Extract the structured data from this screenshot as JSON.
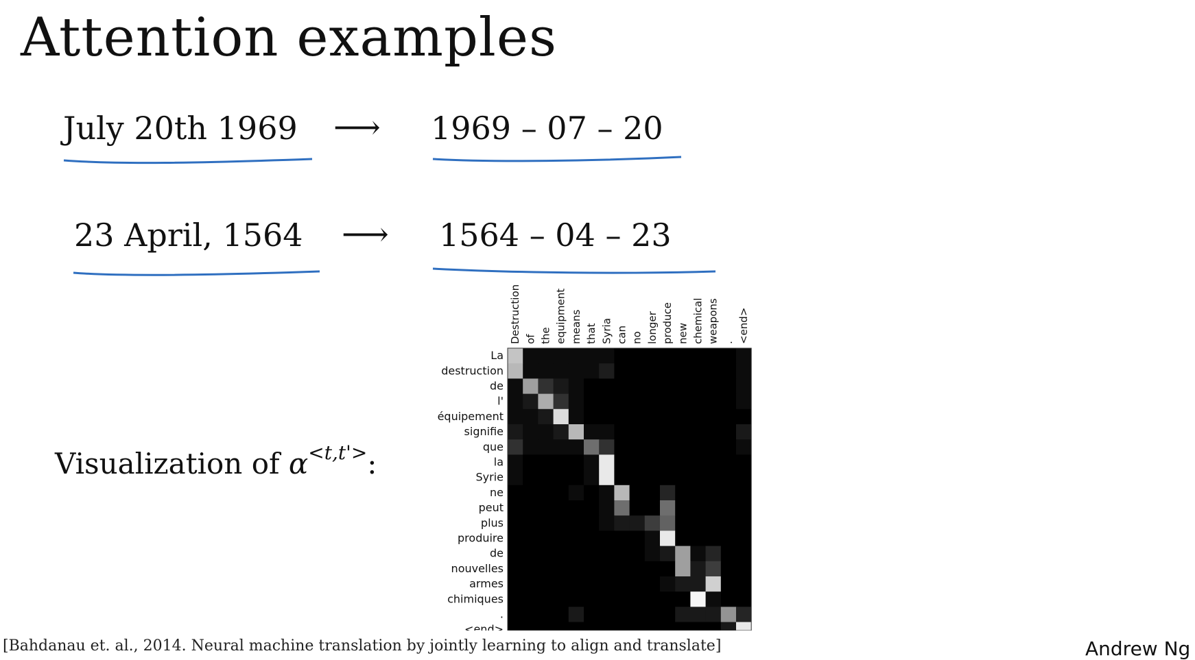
{
  "slide": {
    "title": "Attention examples",
    "examples": [
      {
        "input": "July 20th 1969",
        "arrow": "⟶",
        "output": "1969 – 07 – 20"
      },
      {
        "input": "23 April, 1564",
        "arrow": "⟶",
        "output": "1564 – 04 – 23"
      }
    ],
    "viz_label_prefix": "Visualization of ",
    "viz_label_symbol": "α",
    "viz_label_sup": "<t,t'>",
    "viz_label_suffix": ":",
    "citation": "[Bahdanau et. al., 2014. Neural machine translation by jointly learning to align and translate]",
    "author": "Andrew Ng",
    "colors": {
      "underline": "#2f6fc0",
      "heatmap_background": "#000000"
    }
  },
  "chart_data": {
    "type": "heatmap",
    "x": [
      "Destruction",
      "of",
      "the",
      "equipment",
      "means",
      "that",
      "Syria",
      "can",
      "no",
      "longer",
      "produce",
      "new",
      "chemical",
      "weapons",
      ".",
      "<end>"
    ],
    "y": [
      "La",
      "destruction",
      "de",
      "l'",
      "équipement",
      "signifie",
      "que",
      "la",
      "Syrie",
      "ne",
      "peut",
      "plus",
      "produire",
      "de",
      "nouvelles",
      "armes",
      "chimiques",
      ".",
      "<end>"
    ],
    "values": [
      [
        0.8,
        0.05,
        0.05,
        0.05,
        0.05,
        0.05,
        0.05,
        0,
        0,
        0,
        0,
        0,
        0,
        0,
        0,
        0.05
      ],
      [
        0.75,
        0.05,
        0.05,
        0.05,
        0.05,
        0.05,
        0.12,
        0,
        0,
        0,
        0,
        0,
        0,
        0,
        0,
        0.05
      ],
      [
        0.05,
        0.65,
        0.2,
        0.1,
        0.05,
        0,
        0,
        0,
        0,
        0,
        0,
        0,
        0,
        0,
        0,
        0.05
      ],
      [
        0.05,
        0.1,
        0.7,
        0.2,
        0.05,
        0,
        0,
        0,
        0,
        0,
        0,
        0,
        0,
        0,
        0,
        0.05
      ],
      [
        0.05,
        0.05,
        0.1,
        0.9,
        0.05,
        0,
        0,
        0,
        0,
        0,
        0,
        0,
        0,
        0,
        0,
        0
      ],
      [
        0.1,
        0.05,
        0.05,
        0.1,
        0.75,
        0.05,
        0.05,
        0,
        0,
        0,
        0,
        0,
        0,
        0,
        0,
        0.1
      ],
      [
        0.2,
        0.05,
        0.05,
        0.05,
        0.05,
        0.45,
        0.2,
        0,
        0,
        0,
        0,
        0,
        0,
        0,
        0,
        0.05
      ],
      [
        0.05,
        0,
        0,
        0,
        0,
        0.05,
        0.95,
        0,
        0,
        0,
        0,
        0,
        0,
        0,
        0,
        0
      ],
      [
        0.05,
        0,
        0,
        0,
        0,
        0.05,
        0.95,
        0,
        0,
        0,
        0,
        0,
        0,
        0,
        0,
        0
      ],
      [
        0,
        0,
        0,
        0,
        0.05,
        0,
        0.05,
        0.75,
        0,
        0,
        0.15,
        0,
        0,
        0,
        0,
        0
      ],
      [
        0,
        0,
        0,
        0,
        0,
        0,
        0.05,
        0.45,
        0,
        0,
        0.45,
        0,
        0,
        0,
        0,
        0
      ],
      [
        0,
        0,
        0,
        0,
        0,
        0,
        0.05,
        0.1,
        0.1,
        0.25,
        0.4,
        0,
        0,
        0,
        0,
        0
      ],
      [
        0,
        0,
        0,
        0,
        0,
        0,
        0,
        0,
        0,
        0.05,
        0.95,
        0,
        0,
        0,
        0,
        0
      ],
      [
        0,
        0,
        0,
        0,
        0,
        0,
        0,
        0,
        0,
        0.05,
        0.1,
        0.65,
        0.05,
        0.15,
        0,
        0
      ],
      [
        0,
        0,
        0,
        0,
        0,
        0,
        0,
        0,
        0,
        0,
        0,
        0.65,
        0.1,
        0.25,
        0,
        0
      ],
      [
        0,
        0,
        0,
        0,
        0,
        0,
        0,
        0,
        0,
        0,
        0.05,
        0.1,
        0.1,
        0.85,
        0,
        0
      ],
      [
        0,
        0,
        0,
        0,
        0,
        0,
        0,
        0,
        0,
        0,
        0,
        0,
        1.0,
        0.05,
        0,
        0
      ],
      [
        0,
        0,
        0,
        0,
        0.1,
        0,
        0,
        0,
        0,
        0,
        0,
        0.1,
        0.1,
        0.1,
        0.6,
        0.15
      ],
      [
        0,
        0,
        0,
        0,
        0,
        0,
        0,
        0,
        0,
        0,
        0,
        0,
        0,
        0,
        0.1,
        0.95
      ]
    ],
    "colormap": "grayscale",
    "range": [
      0,
      1
    ]
  }
}
